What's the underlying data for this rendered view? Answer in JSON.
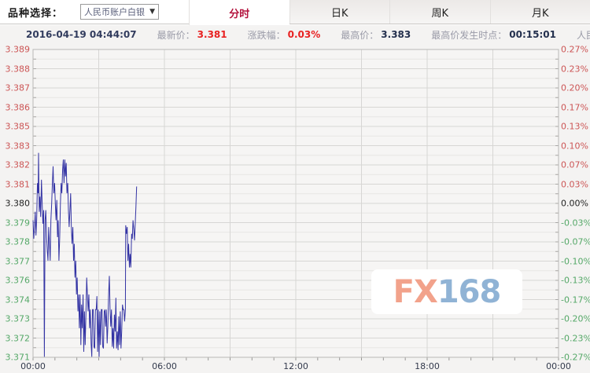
{
  "header": {
    "variety_label": "品种选择：",
    "variety_select": "人民币账户白银",
    "dropdown_arrow": "▼",
    "tabs": [
      {
        "label": "分时",
        "active": true
      },
      {
        "label": "日K",
        "active": false
      },
      {
        "label": "周K",
        "active": false
      },
      {
        "label": "月K",
        "active": false
      }
    ]
  },
  "info_bar": {
    "datetime": "2016-04-19 04:44:07",
    "latest_label": "最新价：",
    "latest_value": "3.381",
    "change_label": "涨跌幅：",
    "change_value": "0.03%",
    "high_label": "最高价：",
    "high_value": "3.383",
    "high_time_label": "最高价发生时点：",
    "high_time_value": "00:15:01",
    "instrument": "人民币账户白银"
  },
  "watermark": {
    "fx": "FX",
    "num": "168"
  },
  "colors": {
    "tab_active_red": "#b3123d",
    "value_red": "#e82222",
    "value_navy": "#24304e",
    "tick_up_red": "#cc5555",
    "tick_down_green": "#55a868",
    "tick_base_black": "#222222",
    "line_blue": "#3434a4",
    "grid_major": "#d7d6d4",
    "grid_minor": "#e7e6e4",
    "plot_border": "#b9b8b6",
    "plot_bg": "#f6f5f4",
    "watermark_fx": "#f2a28b",
    "watermark_168": "#90b3d5"
  },
  "chart_data": {
    "type": "line",
    "title": "人民币账户白银 分时",
    "y_left_ticks": [
      "3.389",
      "3.388",
      "3.387",
      "3.386",
      "3.385",
      "3.383",
      "3.382",
      "3.381",
      "3.380",
      "3.379",
      "3.378",
      "3.377",
      "3.376",
      "3.374",
      "3.373",
      "3.372",
      "3.371"
    ],
    "y_right_ticks": [
      "0.27%",
      "0.23%",
      "0.20%",
      "0.17%",
      "0.13%",
      "0.10%",
      "0.07%",
      "0.03%",
      "0.00%",
      "-0.03%",
      "-0.07%",
      "-0.10%",
      "-0.13%",
      "-0.17%",
      "-0.20%",
      "-0.23%",
      "-0.27%"
    ],
    "x_tick_labels": [
      "00:00",
      "06:00",
      "12:00",
      "18:00",
      "00:00"
    ],
    "x_tick_minutes": [
      0,
      360,
      720,
      1080,
      1440
    ],
    "x_max_minutes": 1440,
    "y_max": 3.389126,
    "y_min": 3.370874,
    "base_price": 3.38,
    "grid": true,
    "vertical_grid_every_minutes": 180,
    "legend": "none",
    "points": [
      [
        0,
        3.379
      ],
      [
        2,
        3.3779
      ],
      [
        4,
        3.3786
      ],
      [
        6,
        3.3795
      ],
      [
        8,
        3.3781
      ],
      [
        10,
        3.379
      ],
      [
        12,
        3.3812
      ],
      [
        14,
        3.3806
      ],
      [
        15,
        3.383
      ],
      [
        16,
        3.3812
      ],
      [
        17,
        3.3795
      ],
      [
        19,
        3.3804
      ],
      [
        21,
        3.3792
      ],
      [
        23,
        3.3814
      ],
      [
        25,
        3.38
      ],
      [
        27,
        3.3788
      ],
      [
        29,
        3.3796
      ],
      [
        31,
        3.3709
      ],
      [
        33,
        3.379
      ],
      [
        35,
        3.3796
      ],
      [
        37,
        3.378
      ],
      [
        39,
        3.3772
      ],
      [
        41,
        3.3766
      ],
      [
        43,
        3.3786
      ],
      [
        45,
        3.3776
      ],
      [
        47,
        3.3766
      ],
      [
        49,
        3.379
      ],
      [
        51,
        3.38
      ],
      [
        53,
        3.3812
      ],
      [
        55,
        3.3822
      ],
      [
        57,
        3.3806
      ],
      [
        59,
        3.3812
      ],
      [
        61,
        3.38
      ],
      [
        63,
        3.379
      ],
      [
        65,
        3.3802
      ],
      [
        67,
        3.378
      ],
      [
        69,
        3.379
      ],
      [
        71,
        3.3766
      ],
      [
        73,
        3.378
      ],
      [
        75,
        3.38
      ],
      [
        77,
        3.3812
      ],
      [
        79,
        3.3806
      ],
      [
        81,
        3.382
      ],
      [
        83,
        3.3826
      ],
      [
        85,
        3.3812
      ],
      [
        87,
        3.3826
      ],
      [
        89,
        3.3816
      ],
      [
        91,
        3.3824
      ],
      [
        93,
        3.3806
      ],
      [
        95,
        3.3812
      ],
      [
        97,
        3.3796
      ],
      [
        99,
        3.3786
      ],
      [
        101,
        3.3796
      ],
      [
        103,
        3.3806
      ],
      [
        105,
        3.3786
      ],
      [
        107,
        3.3776
      ],
      [
        109,
        3.3786
      ],
      [
        111,
        3.3766
      ],
      [
        113,
        3.3776
      ],
      [
        115,
        3.3756
      ],
      [
        117,
        3.3766
      ],
      [
        119,
        3.3746
      ],
      [
        121,
        3.3756
      ],
      [
        123,
        3.3736
      ],
      [
        125,
        3.3746
      ],
      [
        127,
        3.3726
      ],
      [
        129,
        3.3746
      ],
      [
        131,
        3.3716
      ],
      [
        133,
        3.374
      ],
      [
        135,
        3.3726
      ],
      [
        137,
        3.3746
      ],
      [
        139,
        3.3712
      ],
      [
        141,
        3.3736
      ],
      [
        143,
        3.3716
      ],
      [
        145,
        3.3736
      ],
      [
        147,
        3.3756
      ],
      [
        149,
        3.3746
      ],
      [
        151,
        3.3736
      ],
      [
        153,
        3.3746
      ],
      [
        155,
        3.3726
      ],
      [
        157,
        3.3737
      ],
      [
        159,
        3.3717
      ],
      [
        161,
        3.3709
      ],
      [
        163,
        3.3737
      ],
      [
        165,
        3.3737
      ],
      [
        167,
        3.3715
      ],
      [
        169,
        3.3714
      ],
      [
        171,
        3.3737
      ],
      [
        173,
        3.3737
      ],
      [
        175,
        3.3745
      ],
      [
        177,
        3.3712
      ],
      [
        179,
        3.3737
      ],
      [
        181,
        3.3709
      ],
      [
        183,
        3.3736
      ],
      [
        185,
        3.3716
      ],
      [
        187,
        3.3737
      ],
      [
        189,
        3.3737
      ],
      [
        191,
        3.3715
      ],
      [
        193,
        3.3714
      ],
      [
        195,
        3.3736
      ],
      [
        197,
        3.3737
      ],
      [
        199,
        3.3727
      ],
      [
        201,
        3.3737
      ],
      [
        203,
        3.3717
      ],
      [
        205,
        3.3727
      ],
      [
        207,
        3.3745
      ],
      [
        209,
        3.3757
      ],
      [
        211,
        3.3737
      ],
      [
        213,
        3.3727
      ],
      [
        215,
        3.3737
      ],
      [
        217,
        3.3715
      ],
      [
        219,
        3.3726
      ],
      [
        221,
        3.3714
      ],
      [
        223,
        3.3734
      ],
      [
        225,
        3.3724
      ],
      [
        227,
        3.3744
      ],
      [
        229,
        3.3714
      ],
      [
        231,
        3.3724
      ],
      [
        233,
        3.3713
      ],
      [
        235,
        3.3733
      ],
      [
        237,
        3.3716
      ],
      [
        239,
        3.3736
      ],
      [
        241,
        3.3714
      ],
      [
        243,
        3.3724
      ],
      [
        245,
        3.374
      ],
      [
        247,
        3.3737
      ],
      [
        249,
        3.3737
      ],
      [
        251,
        3.373
      ],
      [
        253,
        3.3737
      ],
      [
        254,
        3.3787
      ],
      [
        256,
        3.3782
      ],
      [
        258,
        3.3786
      ],
      [
        260,
        3.3766
      ],
      [
        262,
        3.3776
      ],
      [
        264,
        3.3762
      ],
      [
        266,
        3.377
      ],
      [
        268,
        3.3762
      ],
      [
        270,
        3.3782
      ],
      [
        272,
        3.3779
      ],
      [
        274,
        3.379
      ],
      [
        276,
        3.3785
      ],
      [
        278,
        3.3778
      ],
      [
        280,
        3.3788
      ],
      [
        282,
        3.3798
      ],
      [
        284,
        3.381
      ]
    ]
  }
}
